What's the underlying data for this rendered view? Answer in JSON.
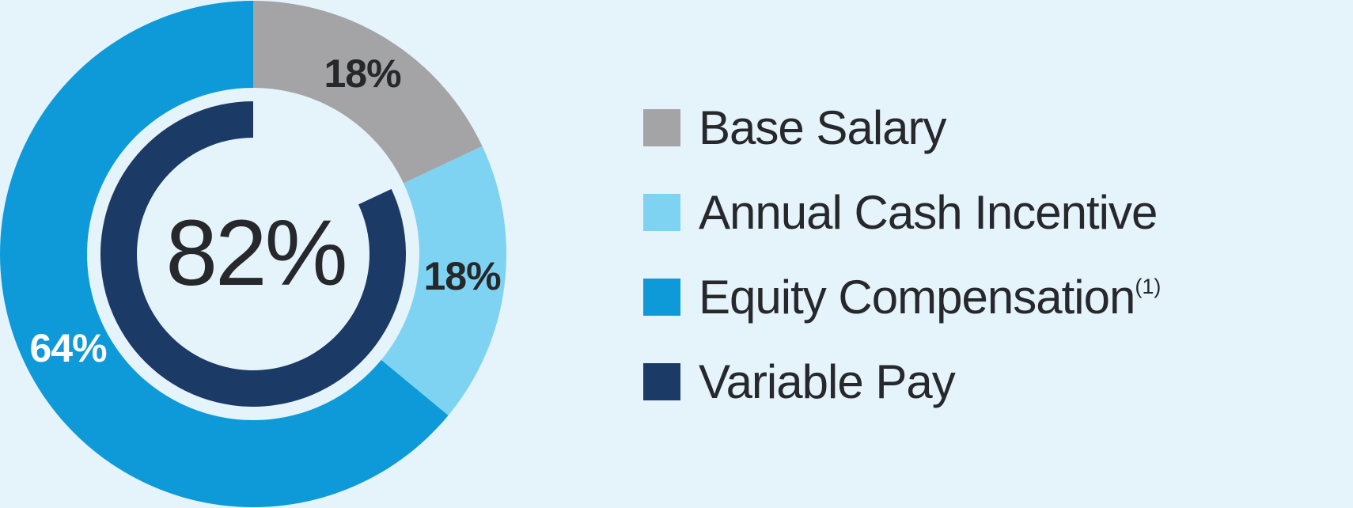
{
  "colors": {
    "background": "#e5f3fb",
    "text_dark": "#26282b",
    "text_light": "#ffffff"
  },
  "chart_data": {
    "type": "donut",
    "unit": "%",
    "segments": [
      {
        "label": "Base Salary",
        "value": 18,
        "display": "18%",
        "color": "#a4a4a6"
      },
      {
        "label": "Annual Cash Incentive",
        "value": 18,
        "display": "18%",
        "color": "#7ed3f2"
      },
      {
        "label": "Equity Compensation",
        "value": 64,
        "display": "64%",
        "color": "#0e9ad8"
      }
    ],
    "inner_ring": {
      "label": "Variable Pay",
      "value": 82,
      "display": "82%",
      "gap_percent": 18,
      "color": "#1b3a66"
    },
    "center_label": "82%",
    "legend_position": "right"
  },
  "legend": {
    "items": [
      {
        "label": "Base Salary",
        "superscript": "",
        "color": "#a4a4a6"
      },
      {
        "label": "Annual Cash Incentive",
        "superscript": "",
        "color": "#7ed3f2"
      },
      {
        "label": "Equity Compensation",
        "superscript": "(1)",
        "color": "#0e9ad8"
      },
      {
        "label": "Variable Pay",
        "superscript": "",
        "color": "#1b3a66"
      }
    ]
  }
}
